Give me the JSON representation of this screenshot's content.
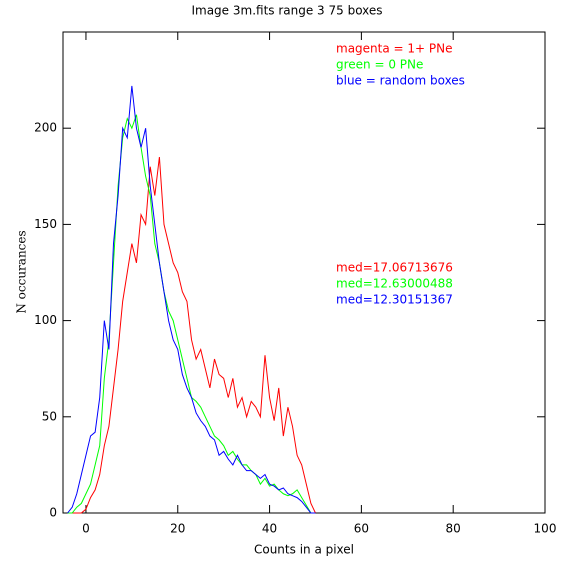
{
  "chart_data": {
    "type": "line",
    "title": "Image 3m.fits   range 3    75 boxes",
    "x_label": "Counts in a pixel",
    "y_label": "N occurances",
    "x": [
      -4,
      -3,
      -2,
      -1,
      0,
      1,
      2,
      3,
      4,
      5,
      6,
      7,
      8,
      9,
      10,
      11,
      12,
      13,
      14,
      15,
      16,
      17,
      18,
      19,
      20,
      21,
      22,
      23,
      24,
      25,
      26,
      27,
      28,
      29,
      30,
      31,
      32,
      33,
      34,
      35,
      36,
      37,
      38,
      39,
      40,
      41,
      42,
      43,
      44,
      45,
      46,
      47,
      48,
      49,
      50
    ],
    "series": [
      {
        "name": "magenta = 1+ PNe",
        "color": "#ff0000",
        "values": [
          0,
          0,
          0,
          0,
          2,
          8,
          12,
          20,
          35,
          45,
          65,
          85,
          110,
          125,
          140,
          130,
          155,
          150,
          180,
          165,
          185,
          150,
          140,
          130,
          125,
          115,
          110,
          90,
          80,
          85,
          75,
          65,
          80,
          72,
          70,
          60,
          70,
          55,
          60,
          50,
          58,
          55,
          50,
          82,
          60,
          48,
          65,
          40,
          55,
          45,
          30,
          25,
          15,
          5,
          0
        ]
      },
      {
        "name": "green = 0 PNe",
        "color": "#00ff00",
        "values": [
          0,
          0,
          3,
          5,
          10,
          15,
          25,
          35,
          70,
          90,
          130,
          170,
          195,
          205,
          200,
          207,
          190,
          175,
          165,
          140,
          130,
          115,
          105,
          100,
          90,
          80,
          70,
          60,
          58,
          55,
          50,
          45,
          40,
          38,
          35,
          30,
          32,
          28,
          25,
          25,
          22,
          20,
          15,
          18,
          14,
          15,
          12,
          10,
          9,
          10,
          12,
          8,
          4,
          0,
          0
        ]
      },
      {
        "name": "blue = random boxes",
        "color": "#0000ff",
        "values": [
          0,
          3,
          10,
          20,
          30,
          40,
          42,
          60,
          100,
          85,
          140,
          165,
          200,
          195,
          222,
          200,
          190,
          200,
          170,
          150,
          130,
          115,
          100,
          90,
          85,
          72,
          65,
          60,
          52,
          48,
          45,
          40,
          38,
          30,
          32,
          28,
          25,
          30,
          25,
          22,
          22,
          20,
          18,
          20,
          15,
          14,
          12,
          13,
          10,
          9,
          8,
          6,
          3,
          0,
          0
        ]
      }
    ],
    "annotations": [
      {
        "text": "med=17.06713676",
        "color": "#ff0000"
      },
      {
        "text": "med=12.63000488",
        "color": "#00ff00"
      },
      {
        "text": "med=12.30151367",
        "color": "#0000ff"
      }
    ],
    "xlim": [
      -5,
      100
    ],
    "xticks": [
      0,
      20,
      40,
      60,
      80,
      100
    ],
    "ylim": [
      0,
      250
    ],
    "yticks": [
      0,
      50,
      100,
      150,
      200
    ]
  }
}
